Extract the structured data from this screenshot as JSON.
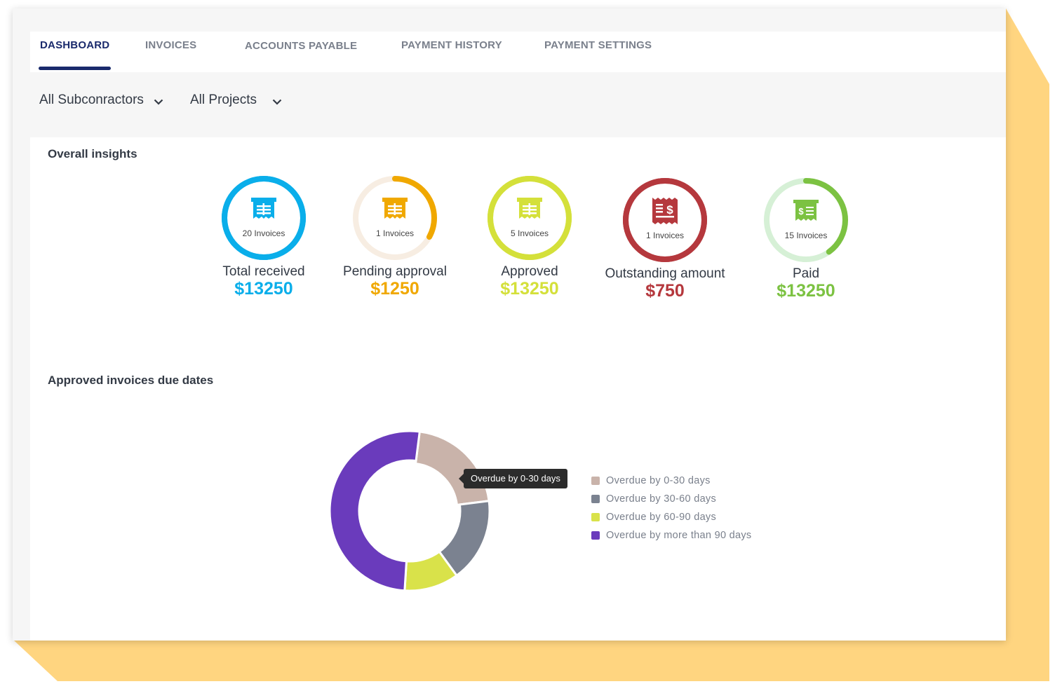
{
  "tabs": [
    {
      "label": "DASHBOARD",
      "active": true
    },
    {
      "label": "INVOICES",
      "active": false
    },
    {
      "label": "ACCOUNTS PAYABLE",
      "active": false
    },
    {
      "label": "PAYMENT HISTORY",
      "active": false
    },
    {
      "label": "PAYMENT SETTINGS",
      "active": false
    }
  ],
  "filters": {
    "subcontractors": "All Subconractors",
    "projects": "All Projects"
  },
  "insights": {
    "title": "Overall insights",
    "cards": [
      {
        "count": "20 Invoices",
        "label": "Total received",
        "amount": "$13250",
        "color": "#0aaeea",
        "track": "#0aaeea",
        "fraction": 1.0,
        "icon": "invoice-icon"
      },
      {
        "count": "1 Invoices",
        "label": "Pending approval",
        "amount": "$1250",
        "color": "#f0a800",
        "track": "#f7ede2",
        "fraction": 0.33,
        "icon": "invoice-icon"
      },
      {
        "count": "5 Invoices",
        "label": "Approved",
        "amount": "$13250",
        "color": "#d4e03a",
        "track": "#d4e03a",
        "fraction": 1.0,
        "icon": "invoice-icon"
      },
      {
        "count": "1 Invoices",
        "label": "Outstanding amount",
        "amount": "$750",
        "color": "#b5383d",
        "track": "#b5383d",
        "fraction": 1.0,
        "icon": "dollar-receipt-icon"
      },
      {
        "count": "15 Invoices",
        "label": "Paid",
        "amount": "$13250",
        "color": "#7cc242",
        "track": "#d6f0d6",
        "fraction": 0.4,
        "icon": "dollar-invoice-icon"
      }
    ]
  },
  "due_dates": {
    "title": "Approved invoices due dates",
    "tooltip": "Overdue by 0-30 days"
  },
  "chart_data": {
    "type": "pie",
    "donut": true,
    "categories": [
      "Overdue by 0-30 days",
      "Overdue by 30-60 days",
      "Overdue by 60-90 days",
      "Overdue by more than 90 days"
    ],
    "values": [
      21,
      17,
      11,
      51
    ],
    "colors": [
      "#c9b3aa",
      "#7b8290",
      "#d9e24a",
      "#6a3bbc"
    ],
    "legend": "right",
    "highlighted": "Overdue by 0-30 days"
  }
}
